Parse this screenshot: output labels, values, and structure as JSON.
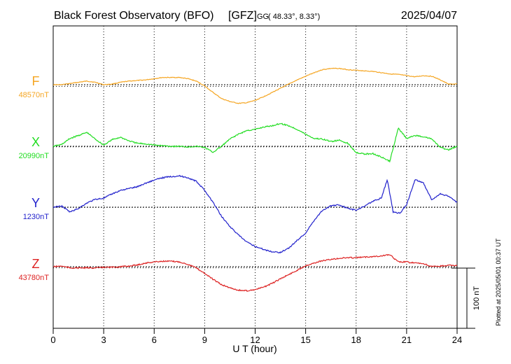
{
  "header": {
    "station": "Black Forest Observatory (BFO)",
    "agency": "[GFZ]",
    "coord_prefix": "GG",
    "coord_values": "( 48.33°,  8.33°)",
    "date": "2025/04/07"
  },
  "footnote": "Plotted at 2025/05/01 00:37 UT",
  "chart_data": {
    "type": "line",
    "xlabel": "U T (hour)",
    "x_ticks": [
      "0",
      "3",
      "6",
      "9",
      "12",
      "15",
      "18",
      "21",
      "24"
    ],
    "xlim": [
      0,
      24
    ],
    "grid": true,
    "scale_bar": {
      "value": 100,
      "label": "100 nT"
    },
    "series": [
      {
        "name": "F",
        "baseline_label": "48570nT",
        "baseline": 48570,
        "color": "#f5a623",
        "x": [
          0,
          0.5,
          1,
          1.5,
          2,
          2.5,
          3,
          3.5,
          4,
          4.5,
          5,
          5.5,
          6,
          6.5,
          7,
          7.5,
          8,
          8.5,
          9,
          9.5,
          10,
          10.5,
          11,
          11.5,
          12,
          12.5,
          13,
          13.5,
          14,
          14.5,
          15,
          15.5,
          16,
          16.5,
          17,
          17.5,
          18,
          18.5,
          19,
          19.5,
          20,
          20.5,
          21,
          21.5,
          22,
          22.5,
          23,
          23.5,
          24
        ],
        "values": [
          48570,
          48570,
          48572,
          48574,
          48576,
          48574,
          48570,
          48571,
          48574,
          48576,
          48577,
          48578,
          48580,
          48582,
          48582,
          48582,
          48580,
          48576,
          48568,
          48557,
          48547,
          48542,
          48539,
          48540,
          48544,
          48550,
          48557,
          48564,
          48571,
          48578,
          48584,
          48590,
          48595,
          48597,
          48597,
          48595,
          48594,
          48593,
          48592,
          48590,
          48588,
          48587,
          48585,
          48583,
          48585,
          48584,
          48578,
          48571,
          48571
        ]
      },
      {
        "name": "X",
        "baseline_label": "20990nT",
        "baseline": 20990,
        "color": "#22dd22",
        "x": [
          0,
          0.5,
          1,
          1.5,
          2,
          2.5,
          3,
          3.5,
          4,
          4.5,
          5,
          5.5,
          6,
          6.5,
          7,
          7.5,
          8,
          8.5,
          9,
          9.5,
          10,
          10.5,
          11,
          11.5,
          12,
          12.5,
          13,
          13.5,
          14,
          14.5,
          15,
          15.5,
          16,
          16.5,
          17,
          17.5,
          18,
          18.5,
          19,
          19.5,
          20,
          20.5,
          21,
          21.5,
          22,
          22.5,
          23,
          23.5,
          24
        ],
        "values": [
          20990,
          20993,
          21003,
          21008,
          21013,
          21002,
          20992,
          21001,
          21005,
          20999,
          20995,
          20994,
          20992,
          20991,
          20990,
          20990,
          20989,
          20990,
          20988,
          20980,
          20990,
          21002,
          21010,
          21016,
          21018,
          21022,
          21024,
          21028,
          21024,
          21018,
          21010,
          21003,
          21002,
          20998,
          21000,
          20995,
          20980,
          20977,
          20978,
          20972,
          20965,
          21020,
          21003,
          21008,
          21006,
          21002,
          20988,
          20984,
          20990
        ]
      },
      {
        "name": "Y",
        "baseline_label": "1230nT",
        "baseline": 1230,
        "color": "#2222cc",
        "x": [
          0,
          0.5,
          1,
          1.5,
          2,
          2.5,
          3,
          3.5,
          4,
          4.5,
          5,
          5.5,
          6,
          6.5,
          7,
          7.5,
          8,
          8.5,
          9,
          9.5,
          10,
          10.5,
          11,
          11.5,
          12,
          12.5,
          13,
          13.5,
          14,
          14.5,
          15,
          15.5,
          16,
          16.5,
          17,
          17.5,
          18,
          18.5,
          19,
          19.5,
          19.85,
          20.2,
          20.6,
          21,
          21.5,
          22,
          22.5,
          23,
          23.5,
          24
        ],
        "values": [
          1230,
          1232,
          1222,
          1228,
          1237,
          1243,
          1245,
          1252,
          1258,
          1261,
          1264,
          1270,
          1275,
          1279,
          1281,
          1282,
          1279,
          1273,
          1258,
          1238,
          1215,
          1198,
          1184,
          1172,
          1165,
          1160,
          1156,
          1155,
          1162,
          1175,
          1187,
          1208,
          1225,
          1232,
          1234,
          1228,
          1225,
          1232,
          1240,
          1245,
          1276,
          1222,
          1220,
          1234,
          1276,
          1270,
          1242,
          1252,
          1248,
          1238
        ]
      },
      {
        "name": "Z",
        "baseline_label": "43780nT",
        "baseline": 43780,
        "color": "#dd2222",
        "x": [
          0,
          0.5,
          1,
          1.5,
          2,
          2.5,
          3,
          3.5,
          4,
          4.5,
          5,
          5.5,
          6,
          6.5,
          7,
          7.5,
          8,
          8.5,
          9,
          9.5,
          10,
          10.5,
          11,
          11.5,
          12,
          12.5,
          13,
          13.5,
          14,
          14.5,
          15,
          15.5,
          16,
          16.5,
          17,
          17.5,
          18,
          18.5,
          19,
          19.5,
          20,
          20.5,
          21,
          21.5,
          22,
          22.5,
          23,
          23.5,
          24
        ],
        "values": [
          43780,
          43781,
          43778,
          43778,
          43778,
          43778,
          43779,
          43779,
          43780,
          43781,
          43783,
          43786,
          43788,
          43789,
          43789,
          43788,
          43784,
          43778,
          43769,
          43759,
          43750,
          43745,
          43741,
          43740,
          43742,
          43746,
          43752,
          43760,
          43767,
          43774,
          43782,
          43786,
          43790,
          43792,
          43794,
          43795,
          43795,
          43796,
          43797,
          43798,
          43800,
          43788,
          43788,
          43786,
          43785,
          43780,
          43781,
          43782,
          43782
        ]
      }
    ]
  }
}
